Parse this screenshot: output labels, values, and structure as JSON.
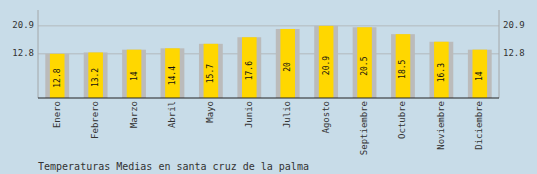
{
  "chart_data": {
    "type": "bar",
    "title": "Temperaturas Medias en santa cruz de la palma",
    "categories": [
      "Enero",
      "Febrero",
      "Marzo",
      "Abril",
      "Mayo",
      "Junio",
      "Julio",
      "Agosto",
      "Septiembre",
      "Octubre",
      "Noviembre",
      "Diciembre"
    ],
    "values": [
      12.8,
      13.2,
      14.0,
      14.4,
      15.7,
      17.6,
      20.0,
      20.9,
      20.5,
      18.5,
      16.3,
      14.0
    ],
    "color": "#FFD700",
    "ylim": [
      0,
      25.498
    ],
    "yticks": [
      12.8,
      20.9
    ],
    "grid": true,
    "data_labels": true
  }
}
